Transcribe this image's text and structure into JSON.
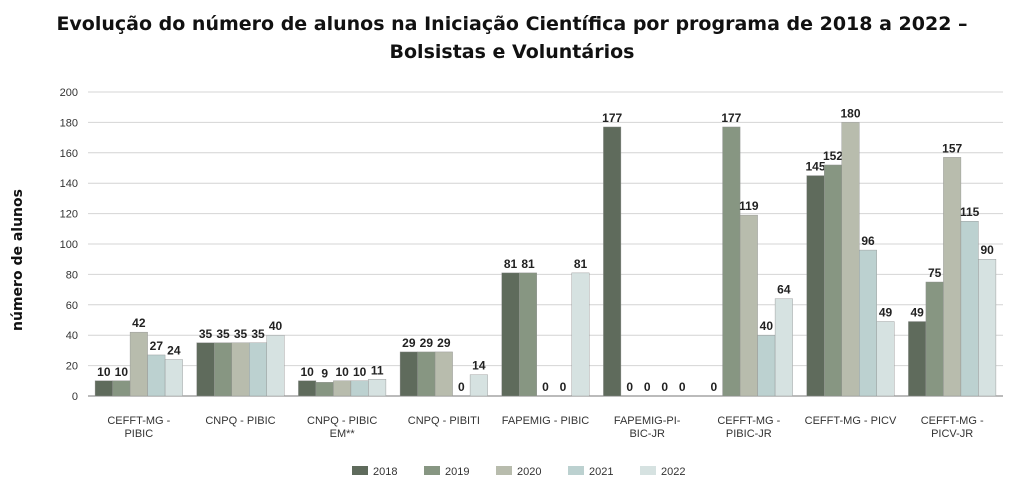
{
  "chart_data": {
    "type": "bar",
    "title_line1": "Evolução do número de alunos na Iniciação Científica por programa de 2018 a 2022 –",
    "title_line2": "Bolsistas e Voluntários",
    "xlabel": "",
    "ylabel": "número de alunos",
    "ylim": [
      0,
      200
    ],
    "yticks": [
      "0",
      "20",
      "40",
      "60",
      "80",
      "100",
      "120",
      "140",
      "160",
      "180",
      "200"
    ],
    "grid": true,
    "legend_position": "bottom",
    "categories": [
      [
        "CEFFT-MG -",
        "PIBIC"
      ],
      [
        "CNPQ - PIBIC"
      ],
      [
        "CNPQ - PIBIC",
        "EM**"
      ],
      [
        "CNPQ - PIBITI"
      ],
      [
        "FAPEMIG - PIBIC"
      ],
      [
        "FAPEMIG-PI-",
        "BIC-JR"
      ],
      [
        "CEFFT-MG -",
        "PIBIC-JR"
      ],
      [
        "CEFFT-MG - PICV"
      ],
      [
        "CEFFT-MG -",
        "PICV-JR"
      ]
    ],
    "series": [
      {
        "name": "2018",
        "color": "#5f6b5c",
        "values": [
          10,
          35,
          10,
          29,
          81,
          177,
          0,
          145,
          49
        ]
      },
      {
        "name": "2019",
        "color": "#879682",
        "values": [
          10,
          35,
          9,
          29,
          81,
          0,
          177,
          152,
          75
        ]
      },
      {
        "name": "2020",
        "color": "#b8bcad",
        "values": [
          42,
          35,
          10,
          29,
          0,
          0,
          119,
          180,
          157
        ]
      },
      {
        "name": "2021",
        "color": "#bcd1d0",
        "values": [
          27,
          35,
          10,
          0,
          0,
          0,
          40,
          96,
          115
        ]
      },
      {
        "name": "2022",
        "color": "#d6e2e1",
        "values": [
          24,
          40,
          11,
          14,
          81,
          0,
          64,
          49,
          90
        ]
      }
    ]
  }
}
